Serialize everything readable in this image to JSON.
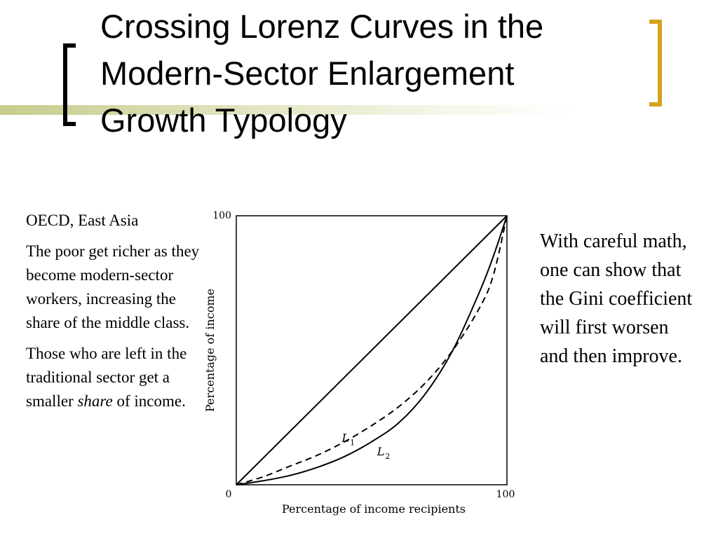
{
  "slide": {
    "title": "Crossing Lorenz Curves in the Modern-Sector Enlargement Growth Typology",
    "left_heading": "OECD, East Asia",
    "left_para1": "The poor get richer as they become modern-sector workers, increasing the share of the middle class.",
    "left_para2_before": "Those who are left in the traditional sector get a smaller ",
    "left_para2_emph": "share",
    "left_para2_after": " of income.",
    "right_text": "With careful math, one can show that the Gini coefficient will first worsen and then improve."
  },
  "colors": {
    "accent_gold": "#d6a21c",
    "rule_olive": "#c8cc8c",
    "ink": "#000000"
  },
  "chart_data": {
    "type": "line",
    "xlabel": "Percentage of income recipients",
    "ylabel": "Percentage of income",
    "xlim": [
      0,
      100
    ],
    "ylim": [
      0,
      100
    ],
    "x_ticks": [
      "0",
      "100"
    ],
    "y_ticks": [
      "100"
    ],
    "grid": false,
    "series": [
      {
        "name": "",
        "style": "solid",
        "x": [
          0,
          100
        ],
        "y": [
          0,
          100
        ]
      },
      {
        "name": "L1",
        "style": "dashed",
        "x": [
          0,
          10,
          20,
          30,
          40,
          50,
          60,
          70,
          80,
          90,
          95,
          100
        ],
        "y": [
          0,
          3,
          7,
          11,
          16,
          22,
          29,
          38,
          50,
          66,
          78,
          100
        ]
      },
      {
        "name": "L2",
        "style": "solid",
        "x": [
          0,
          10,
          20,
          30,
          40,
          50,
          60,
          70,
          80,
          90,
          95,
          100
        ],
        "y": [
          0,
          1.5,
          3.5,
          6.5,
          10.5,
          16,
          23,
          34,
          50,
          72,
          85,
          100
        ]
      }
    ],
    "annotations": [
      {
        "text": "L",
        "sub": "1",
        "x": 39,
        "y": 16
      },
      {
        "text": "L",
        "sub": "2",
        "x": 52,
        "y": 11
      }
    ]
  }
}
